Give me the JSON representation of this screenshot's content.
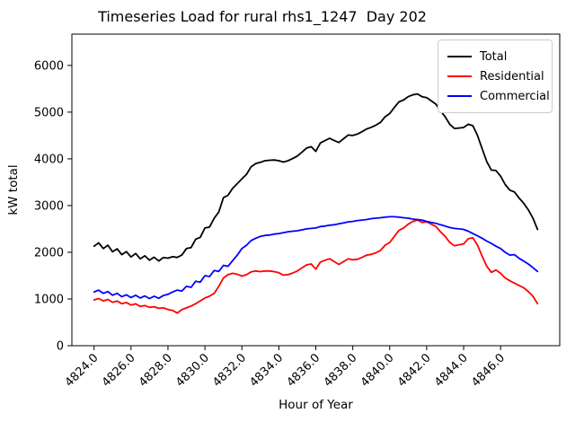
{
  "figure": {
    "background": "#ffffff",
    "title": "Timeseries Load for rural rhs1_1247  Day 202"
  },
  "chart_data": {
    "type": "line",
    "title": "Timeseries Load for rural rhs1_1247  Day 202",
    "xlabel": "Hour of Year",
    "ylabel": "kW total",
    "xlim": [
      4822.8,
      4849.2
    ],
    "ylim": [
      0,
      6670
    ],
    "grid": false,
    "legend_position": "upper right",
    "x_tick_rotation_deg": 45,
    "x_ticks": [
      4824,
      4826,
      4828,
      4830,
      4832,
      4834,
      4836,
      4838,
      4840,
      4842,
      4844,
      4846
    ],
    "x_tick_labels": [
      "4824.0",
      "4826.0",
      "4828.0",
      "4830.0",
      "4832.0",
      "4834.0",
      "4836.0",
      "4838.0",
      "4840.0",
      "4842.0",
      "4844.0",
      "4846.0"
    ],
    "y_ticks": [
      0,
      1000,
      2000,
      3000,
      4000,
      5000,
      6000
    ],
    "y_tick_labels": [
      "0",
      "1000",
      "2000",
      "3000",
      "4000",
      "5000",
      "6000"
    ],
    "x": [
      4824.0,
      4824.25,
      4824.5,
      4824.75,
      4825.0,
      4825.25,
      4825.5,
      4825.75,
      4826.0,
      4826.25,
      4826.5,
      4826.75,
      4827.0,
      4827.25,
      4827.5,
      4827.75,
      4828.0,
      4828.25,
      4828.5,
      4828.75,
      4829.0,
      4829.25,
      4829.5,
      4829.75,
      4830.0,
      4830.25,
      4830.5,
      4830.75,
      4831.0,
      4831.25,
      4831.5,
      4831.75,
      4832.0,
      4832.25,
      4832.5,
      4832.75,
      4833.0,
      4833.25,
      4833.5,
      4833.75,
      4834.0,
      4834.25,
      4834.5,
      4834.75,
      4835.0,
      4835.25,
      4835.5,
      4835.75,
      4836.0,
      4836.25,
      4836.5,
      4836.75,
      4837.0,
      4837.25,
      4837.5,
      4837.75,
      4838.0,
      4838.25,
      4838.5,
      4838.75,
      4839.0,
      4839.25,
      4839.5,
      4839.75,
      4840.0,
      4840.25,
      4840.5,
      4840.75,
      4841.0,
      4841.25,
      4841.5,
      4841.75,
      4842.0,
      4842.25,
      4842.5,
      4842.75,
      4843.0,
      4843.25,
      4843.5,
      4843.75,
      4844.0,
      4844.25,
      4844.5,
      4844.75,
      4845.0,
      4845.25,
      4845.5,
      4845.75,
      4846.0,
      4846.25,
      4846.5,
      4846.75,
      4847.0,
      4847.25,
      4847.5,
      4847.75,
      4848.0
    ],
    "series": [
      {
        "name": "Total",
        "color": "#000000",
        "values": [
          2130,
          2200,
          2080,
          2150,
          2010,
          2075,
          1950,
          2015,
          1900,
          1975,
          1860,
          1925,
          1830,
          1895,
          1815,
          1885,
          1875,
          1905,
          1890,
          1940,
          2080,
          2100,
          2280,
          2320,
          2520,
          2540,
          2730,
          2860,
          3170,
          3220,
          3370,
          3470,
          3570,
          3670,
          3830,
          3900,
          3925,
          3960,
          3970,
          3975,
          3960,
          3930,
          3960,
          4005,
          4060,
          4145,
          4230,
          4260,
          4160,
          4340,
          4390,
          4440,
          4390,
          4350,
          4430,
          4510,
          4500,
          4530,
          4580,
          4640,
          4675,
          4720,
          4780,
          4900,
          4970,
          5100,
          5220,
          5260,
          5330,
          5370,
          5390,
          5330,
          5310,
          5240,
          5170,
          5030,
          4900,
          4740,
          4650,
          4660,
          4670,
          4740,
          4710,
          4500,
          4220,
          3940,
          3760,
          3750,
          3630,
          3450,
          3330,
          3290,
          3160,
          3050,
          2910,
          2730,
          2490
        ]
      },
      {
        "name": "Residential",
        "color": "#ff0000",
        "values": [
          980,
          1010,
          960,
          990,
          930,
          955,
          900,
          925,
          870,
          895,
          840,
          860,
          820,
          835,
          800,
          810,
          775,
          755,
          700,
          770,
          810,
          850,
          900,
          960,
          1020,
          1060,
          1120,
          1270,
          1450,
          1520,
          1550,
          1530,
          1490,
          1520,
          1580,
          1600,
          1585,
          1600,
          1600,
          1585,
          1560,
          1510,
          1520,
          1555,
          1600,
          1665,
          1730,
          1750,
          1640,
          1790,
          1830,
          1860,
          1800,
          1740,
          1800,
          1860,
          1840,
          1850,
          1890,
          1940,
          1955,
          1990,
          2040,
          2150,
          2210,
          2340,
          2470,
          2520,
          2600,
          2660,
          2690,
          2640,
          2650,
          2600,
          2550,
          2440,
          2340,
          2210,
          2140,
          2160,
          2180,
          2290,
          2310,
          2150,
          1920,
          1700,
          1570,
          1620,
          1550,
          1450,
          1390,
          1340,
          1290,
          1240,
          1160,
          1060,
          900
        ]
      },
      {
        "name": "Commercial",
        "color": "#0000ff",
        "values": [
          1150,
          1190,
          1120,
          1160,
          1080,
          1120,
          1050,
          1090,
          1030,
          1080,
          1020,
          1065,
          1010,
          1060,
          1015,
          1075,
          1100,
          1150,
          1190,
          1170,
          1270,
          1250,
          1380,
          1360,
          1500,
          1480,
          1610,
          1590,
          1720,
          1700,
          1820,
          1940,
          2080,
          2150,
          2250,
          2300,
          2340,
          2360,
          2370,
          2390,
          2400,
          2420,
          2440,
          2450,
          2460,
          2480,
          2500,
          2510,
          2520,
          2550,
          2560,
          2580,
          2590,
          2610,
          2630,
          2650,
          2660,
          2680,
          2690,
          2700,
          2720,
          2730,
          2740,
          2750,
          2760,
          2760,
          2750,
          2740,
          2730,
          2710,
          2700,
          2690,
          2660,
          2640,
          2620,
          2590,
          2560,
          2530,
          2510,
          2500,
          2490,
          2450,
          2400,
          2350,
          2300,
          2240,
          2190,
          2130,
          2080,
          2000,
          1940,
          1950,
          1870,
          1810,
          1750,
          1670,
          1590
        ]
      }
    ]
  }
}
